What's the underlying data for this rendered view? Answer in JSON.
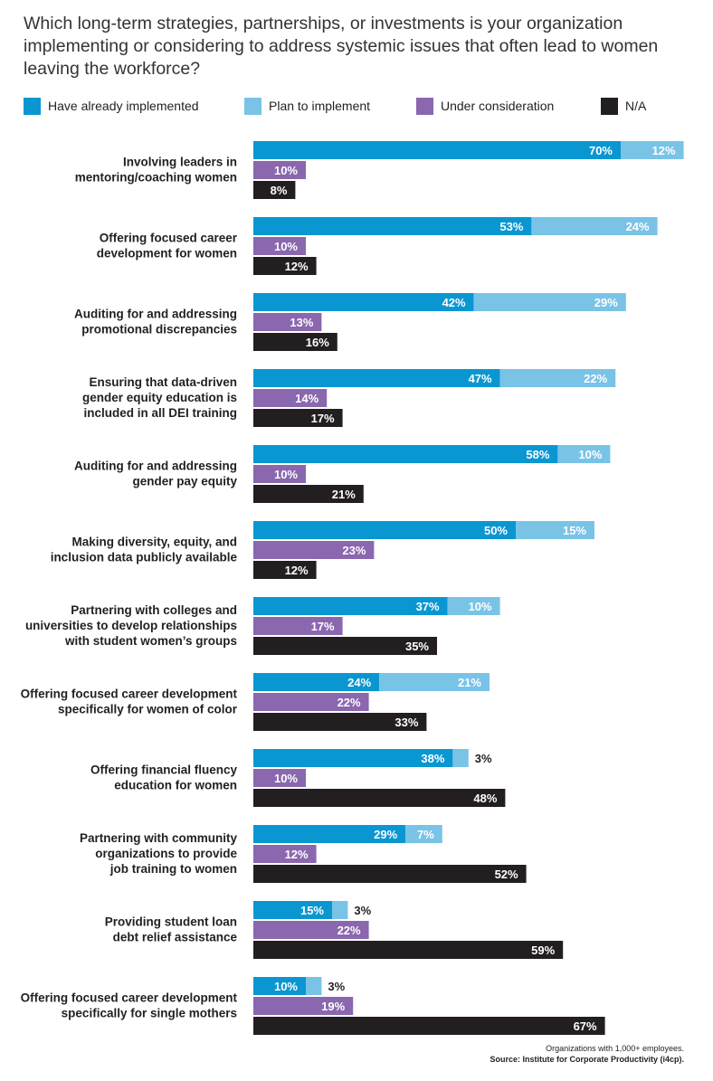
{
  "title": "Which long-term strategies, partnerships, or investments is your organization implementing or considering to address systemic issues that often lead to women leaving the workforce?",
  "footnote": {
    "note": "Organizations with 1,000+ employees.",
    "source": "Source: Institute for Corporate Productivity (i4cp)."
  },
  "colors": {
    "implemented": "#0a97d1",
    "plan": "#79c3e6",
    "consideration": "#8a67ae",
    "na": "#231f20"
  },
  "legend": [
    {
      "key": "implemented",
      "label": "Have already implemented"
    },
    {
      "key": "plan",
      "label": "Plan to implement"
    },
    {
      "key": "consideration",
      "label": "Under consideration"
    },
    {
      "key": "na",
      "label": "N/A"
    }
  ],
  "chart_data": {
    "type": "bar",
    "orientation": "horizontal",
    "stacked_series": [
      "Have already implemented",
      "Plan to implement"
    ],
    "categories": [
      [
        "Involving leaders in",
        "mentoring/coaching women"
      ],
      [
        "Offering focused career",
        "development for women"
      ],
      [
        "Auditing for and addressing",
        "promotional discrepancies"
      ],
      [
        "Ensuring that data-driven",
        "gender equity education is",
        "included in all DEI training"
      ],
      [
        "Auditing for and addressing",
        "gender pay equity"
      ],
      [
        "Making diversity, equity, and",
        "inclusion data publicly available"
      ],
      [
        "Partnering with colleges and",
        "universities to develop relationships",
        "with student women’s groups"
      ],
      [
        "Offering focused career development",
        "specifically for women of color"
      ],
      [
        "Offering financial fluency",
        "education for women"
      ],
      [
        "Partnering with community",
        "organizations to provide",
        "job training to women"
      ],
      [
        "Providing student loan",
        "debt relief assistance"
      ],
      [
        "Offering focused career development",
        "specifically for single mothers"
      ]
    ],
    "series": [
      {
        "name": "Have already implemented",
        "values": [
          70,
          53,
          42,
          47,
          58,
          50,
          37,
          24,
          38,
          29,
          15,
          10
        ]
      },
      {
        "name": "Plan to implement",
        "values": [
          12,
          24,
          29,
          22,
          10,
          15,
          10,
          21,
          3,
          7,
          3,
          3
        ]
      },
      {
        "name": "Under consideration",
        "values": [
          10,
          10,
          13,
          14,
          10,
          23,
          17,
          22,
          10,
          12,
          22,
          19
        ]
      },
      {
        "name": "N/A",
        "values": [
          8,
          12,
          16,
          17,
          21,
          12,
          35,
          33,
          48,
          52,
          59,
          67
        ]
      }
    ],
    "value_suffix": "%",
    "xlim": [
      0,
      100
    ]
  }
}
